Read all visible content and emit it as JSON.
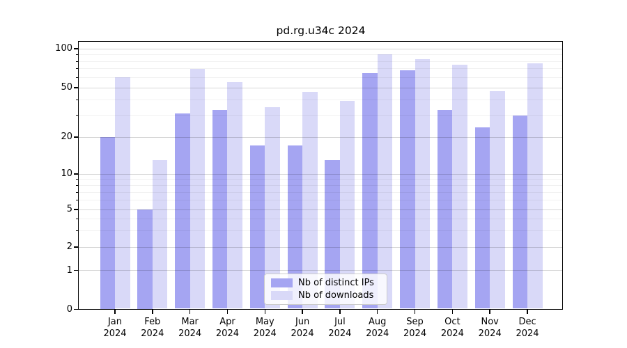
{
  "title": "pd.rg.u34c 2024",
  "chart_data": {
    "type": "bar",
    "title": "pd.rg.u34c 2024",
    "months": [
      "Jan",
      "Feb",
      "Mar",
      "Apr",
      "May",
      "Jun",
      "Jul",
      "Aug",
      "Sep",
      "Oct",
      "Nov",
      "Dec"
    ],
    "year": "2024",
    "series": [
      {
        "name": "Nb of distinct IPs",
        "color": "#a5a5f2",
        "values": [
          20,
          5,
          31,
          33,
          17,
          17,
          13,
          65,
          68,
          33,
          24,
          30
        ]
      },
      {
        "name": "Nb of downloads",
        "color": "#d9d9f8",
        "values": [
          60,
          13,
          70,
          55,
          35,
          46,
          39,
          91,
          83,
          75,
          47,
          77
        ]
      }
    ],
    "yscale": "symlog",
    "ylim": [
      0,
      113
    ],
    "yticks": [
      0,
      1,
      2,
      5,
      10,
      20,
      50,
      100
    ],
    "yticks_minor": [
      3,
      4,
      6,
      7,
      8,
      9,
      30,
      40,
      60,
      70,
      80,
      90
    ],
    "grid": true,
    "legend_position": "lower center",
    "axis_color": "#000000",
    "background_color": "#ffffff"
  }
}
